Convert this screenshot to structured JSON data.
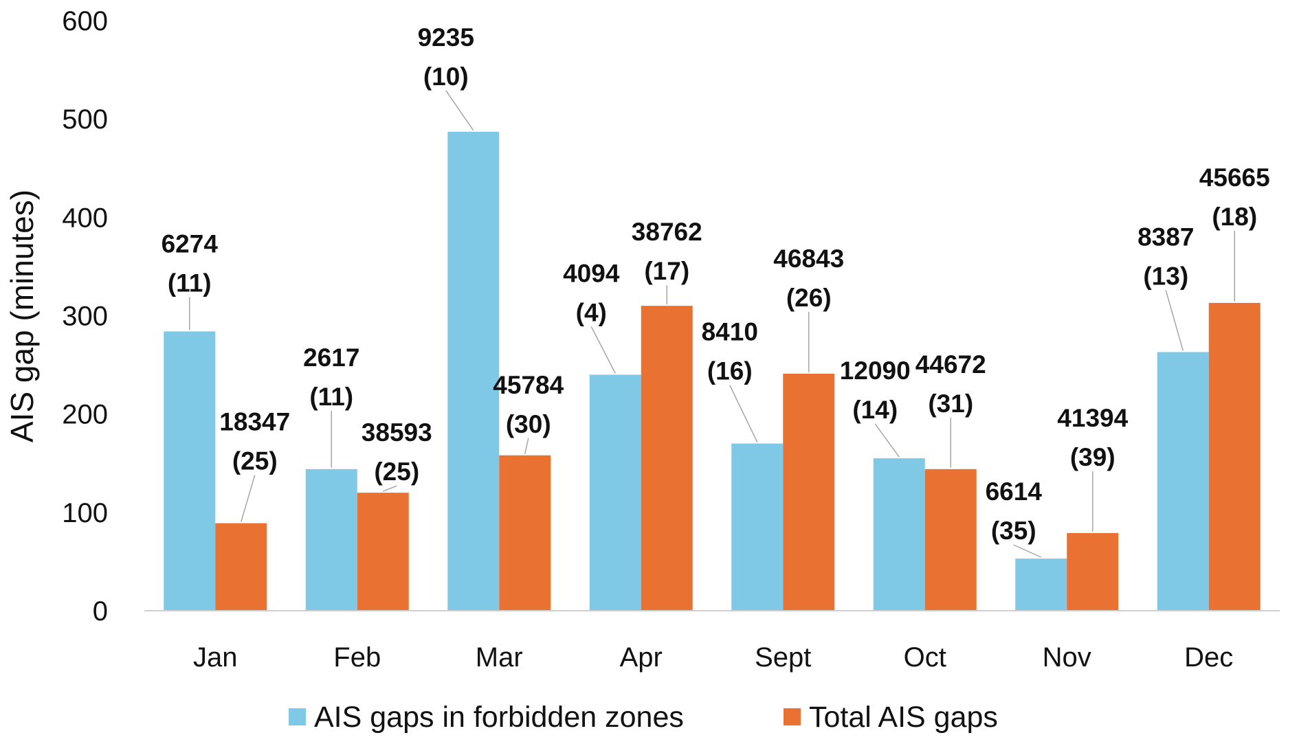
{
  "chart_data": {
    "type": "bar",
    "title": "",
    "xlabel": "",
    "ylabel": "AIS gap (minutes)",
    "ylim": [
      0,
      600
    ],
    "yticks": [
      0,
      100,
      200,
      300,
      400,
      500,
      600
    ],
    "grid": false,
    "legend_position": "bottom",
    "categories": [
      "Jan",
      "Feb",
      "Mar",
      "Apr",
      "Sept",
      "Oct",
      "Nov",
      "Dec"
    ],
    "series": [
      {
        "name": "AIS gaps in forbidden zones",
        "color": "#7fc9e7",
        "values": [
          284,
          144,
          487,
          240,
          170,
          155,
          53,
          263
        ],
        "labels": [
          [
            "6274",
            "(11)"
          ],
          [
            "2617",
            "(11)"
          ],
          [
            "9235",
            "(10)"
          ],
          [
            "4094",
            "(4)"
          ],
          [
            "8410",
            "(16)"
          ],
          [
            "12090",
            "(14)"
          ],
          [
            "6614",
            "(35)"
          ],
          [
            "8387",
            "(13)"
          ]
        ]
      },
      {
        "name": "Total AIS gaps",
        "color": "#e97132",
        "values": [
          89,
          120,
          158,
          310,
          241,
          144,
          79,
          313
        ],
        "labels": [
          [
            "18347",
            "(25)"
          ],
          [
            "38593",
            "(25)"
          ],
          [
            "45784",
            "(30)"
          ],
          [
            "38762",
            "(17)"
          ],
          [
            "46843",
            "(26)"
          ],
          [
            "44672",
            "(31)"
          ],
          [
            "41394",
            "(39)"
          ],
          [
            "45665",
            "(18)"
          ]
        ]
      }
    ]
  }
}
